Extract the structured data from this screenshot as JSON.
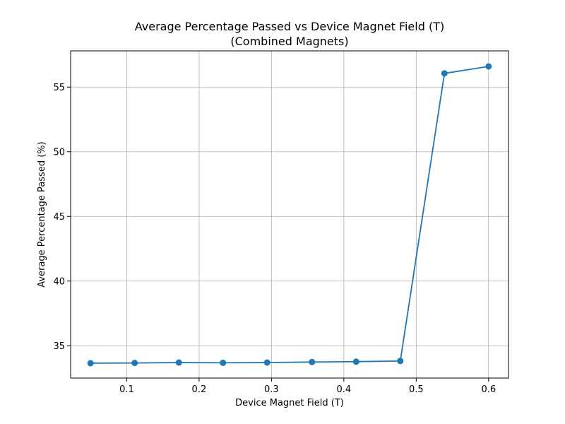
{
  "chart_data": {
    "type": "line",
    "title_line1": "Average Percentage Passed vs Device Magnet Field (T)",
    "title_line2": "(Combined Magnets)",
    "xlabel": "Device Magnet Field (T)",
    "ylabel": "Average Percentage Passed (%)",
    "xlim": [
      0.0225,
      0.6275
    ],
    "ylim": [
      32.5,
      57.8
    ],
    "x_ticks": [
      0.1,
      0.2,
      0.3,
      0.4,
      0.5,
      0.6
    ],
    "x_tick_labels": [
      "0.1",
      "0.2",
      "0.3",
      "0.4",
      "0.5",
      "0.6"
    ],
    "y_ticks": [
      35,
      40,
      45,
      50,
      55
    ],
    "y_tick_labels": [
      "35",
      "40",
      "45",
      "50",
      "55"
    ],
    "grid": true,
    "series": [
      {
        "color": "#1f77b4",
        "x": [
          0.05,
          0.111,
          0.172,
          0.233,
          0.294,
          0.356,
          0.417,
          0.478,
          0.539,
          0.6
        ],
        "y": [
          33.65,
          33.67,
          33.7,
          33.68,
          33.7,
          33.74,
          33.77,
          33.82,
          56.06,
          56.6
        ]
      }
    ]
  }
}
